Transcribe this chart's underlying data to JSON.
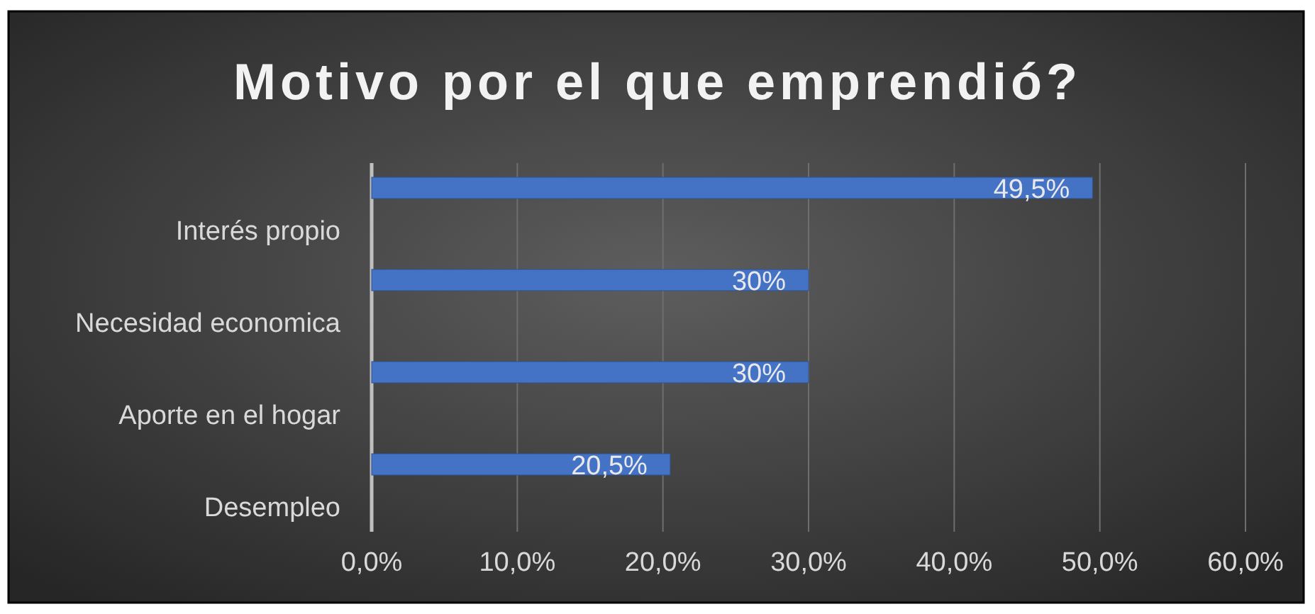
{
  "chart_data": {
    "type": "bar",
    "orientation": "horizontal",
    "title": "Motivo por el que emprendió?",
    "categories": [
      "Interés propio",
      "Necesidad economica",
      "Aporte en el hogar",
      "Desempleo"
    ],
    "values": [
      49.5,
      30,
      30,
      20.5
    ],
    "value_labels": [
      "49,5%",
      "30%",
      "30%",
      "20,5%"
    ],
    "color": "#4472c4",
    "xlim": [
      0,
      60
    ],
    "xticks": [
      {
        "value": 0,
        "label": "0,0%"
      },
      {
        "value": 10,
        "label": "10,0%"
      },
      {
        "value": 20,
        "label": "20,0%"
      },
      {
        "value": 30,
        "label": "30,0%"
      },
      {
        "value": 40,
        "label": "40,0%"
      },
      {
        "value": 50,
        "label": "50,0%"
      },
      {
        "value": 60,
        "label": "60,0%"
      }
    ],
    "grid": "x"
  }
}
